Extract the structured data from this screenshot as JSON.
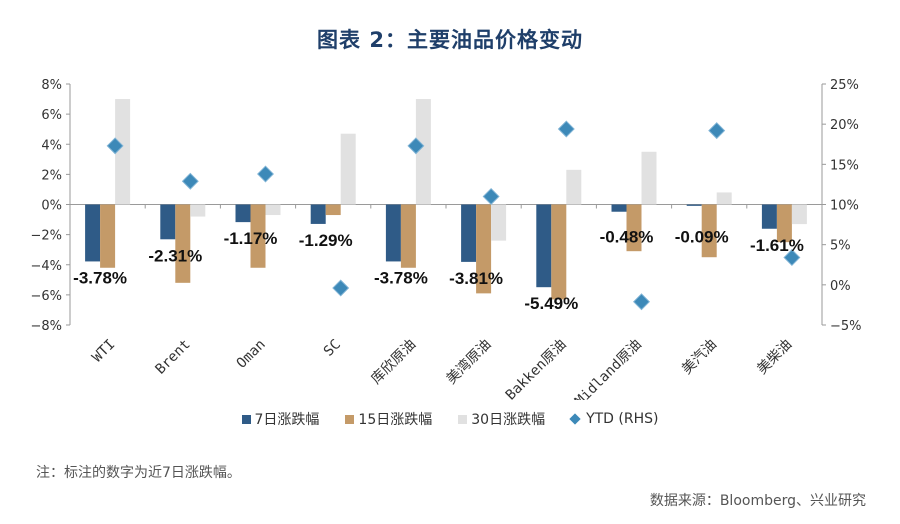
{
  "title": "图表 2：主要油品价格变动",
  "note": "注：标注的数字为近7日涨跌幅。",
  "source": "数据来源：Bloomberg、兴业研究",
  "legend": {
    "s7": "7日涨跌幅",
    "s15": "15日涨跌幅",
    "s30": "30日涨跌幅",
    "ytd": "YTD (RHS)"
  },
  "colors": {
    "s7": "#2f5b87",
    "s15": "#c49a68",
    "s30": "#e1e1e1",
    "ytd": "#3d89b8",
    "title": "#1f3f6a"
  },
  "chart_data": {
    "type": "bar",
    "categories": [
      "WTI",
      "Brent",
      "Oman",
      "SC",
      "库欣原油",
      "美湾原油",
      "Bakken原油",
      "Midland原油",
      "美汽油",
      "美柴油"
    ],
    "series": [
      {
        "name": "7日涨跌幅",
        "values": [
          -3.78,
          -2.31,
          -1.17,
          -1.29,
          -3.78,
          -3.81,
          -5.49,
          -0.48,
          -0.09,
          -1.61
        ]
      },
      {
        "name": "15日涨跌幅",
        "values": [
          -4.2,
          -5.2,
          -4.2,
          -0.7,
          -4.2,
          -5.9,
          -6.3,
          -3.1,
          -3.5,
          -2.5
        ]
      },
      {
        "name": "30日涨跌幅",
        "values": [
          7.0,
          -0.8,
          -0.7,
          4.7,
          7.0,
          -2.4,
          2.3,
          3.5,
          0.8,
          -1.3
        ]
      }
    ],
    "secondary_series": {
      "name": "YTD (RHS)",
      "axis": "right",
      "values": [
        17.3,
        12.9,
        13.8,
        -0.4,
        17.3,
        11.0,
        19.4,
        -2.1,
        19.2,
        3.4
      ]
    },
    "data_labels": [
      "-3.78%",
      "-2.31%",
      "-1.17%",
      "-1.29%",
      "-3.78%",
      "-3.81%",
      "-5.49%",
      "-0.48%",
      "-0.09%",
      "-1.61%"
    ],
    "y_left": {
      "min": -8,
      "max": 8,
      "step": 2,
      "ticks": [
        "8%",
        "6%",
        "4%",
        "2%",
        "0%",
        "−2%",
        "−4%",
        "−6%",
        "−8%"
      ]
    },
    "y_right": {
      "min": -5,
      "max": 25,
      "step": 5,
      "ticks": [
        "25%",
        "20%",
        "15%",
        "10%",
        "5%",
        "0%",
        "−5%"
      ]
    },
    "grid": false,
    "legend_position": "bottom"
  }
}
